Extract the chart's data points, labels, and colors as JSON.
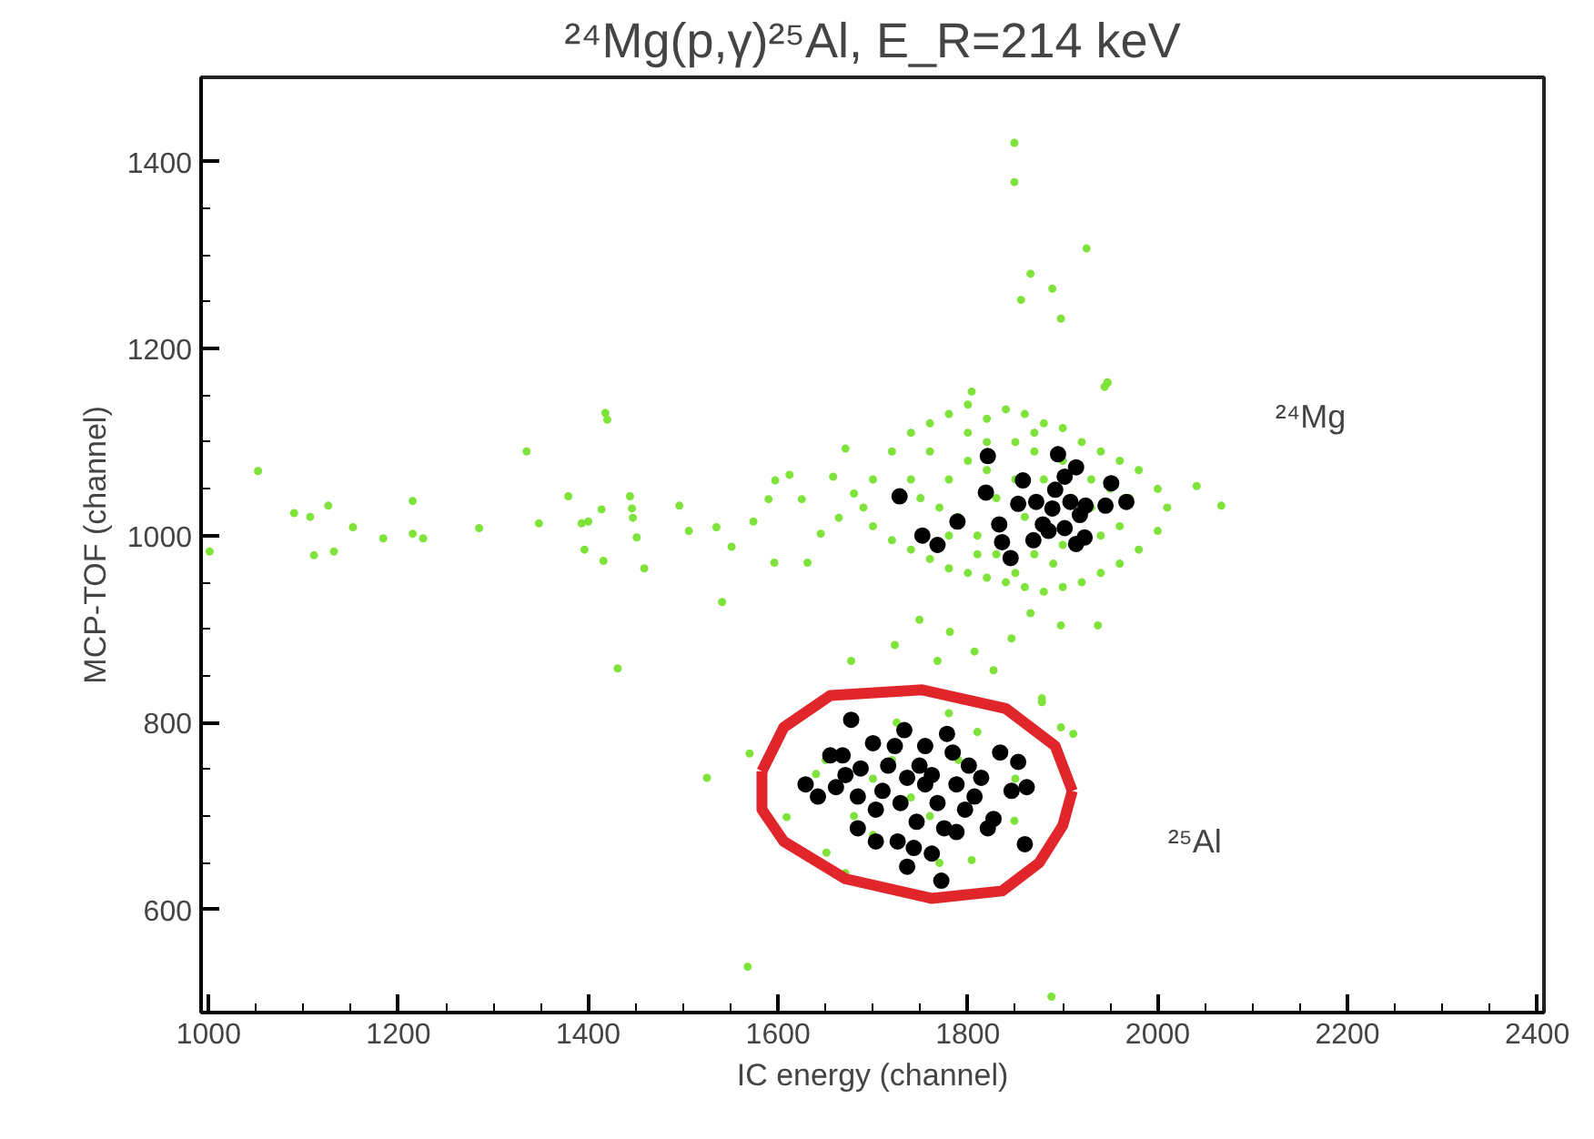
{
  "chart_data": {
    "type": "scatter",
    "title": "²⁴Mg(p,γ)²⁵Al, E_R=214 keV",
    "xlabel": "IC energy (channel)",
    "ylabel": "MCP-TOF (channel)",
    "xlim": [
      992,
      2407
    ],
    "ylim": [
      490,
      1490
    ],
    "xticks": [
      1000,
      1200,
      1400,
      1600,
      1800,
      2000,
      2200,
      2400
    ],
    "yticks": [
      600,
      800,
      1000,
      1200,
      1400
    ],
    "grid": false,
    "marker": "circle",
    "annotations": [
      "²⁴Mg",
      "²⁵Al"
    ],
    "series": [
      {
        "color": "#7ee33a",
        "x": [
          1052,
          1001,
          1090,
          1107,
          1126,
          1111,
          1132,
          1152,
          1184,
          1215,
          1215,
          1226,
          1285,
          1335,
          1348,
          1379,
          1393,
          1400,
          1396,
          1414,
          1418,
          1420,
          1416,
          1444,
          1446,
          1447,
          1451,
          1459,
          1496,
          1506,
          1535,
          1541,
          1551,
          1574,
          1590,
          1597,
          1612,
          1596,
          1625,
          1631,
          1645,
          1671,
          1658,
          1849,
          1849,
          1925,
          1866,
          1889,
          1856,
          1898,
          1947,
          1944,
          1431,
          1570,
          1525,
          1568,
          1888,
          1609,
          1651,
          1671,
          1804,
          1849,
          1878,
          1898,
          1677,
          1723,
          1749,
          1781,
          1807,
          1846,
          1866,
          1898,
          1878,
          1827,
          1768,
          1937,
          1911,
          1664,
          2067,
          2041,
          1947,
          1804,
          1700,
          1720,
          1740,
          1760,
          1780,
          1800,
          1820,
          1840,
          1860,
          1880,
          1900,
          1920,
          1940,
          1960,
          1980,
          2000,
          2010,
          2000,
          1980,
          1960,
          1940,
          1920,
          1900,
          1880,
          1860,
          1840,
          1820,
          1800,
          1780,
          1760,
          1740,
          1720,
          1700,
          1690,
          1680,
          1750,
          1780,
          1800,
          1820,
          1850,
          1870,
          1900,
          1930,
          1950,
          1970,
          1960,
          1940,
          1900,
          1870,
          1850,
          1830,
          1810,
          1790,
          1770,
          1740,
          1760,
          1800,
          1880,
          1860,
          1830,
          1850,
          1910,
          1930,
          1780,
          1820,
          1870,
          1890,
          1810,
          1650,
          1680,
          1700,
          1720,
          1740,
          1760,
          1790,
          1810,
          1830,
          1850,
          1700,
          1770,
          1640,
          1725,
          1780
        ],
        "values": [
          1069,
          983,
          1024,
          1020,
          1032,
          979,
          983,
          1009,
          997,
          1037,
          1002,
          997,
          1008,
          1090,
          1013,
          1042,
          1013,
          1015,
          985,
          1028,
          1131,
          1124,
          973,
          1042,
          1029,
          1019,
          998,
          965,
          1032,
          1005,
          1009,
          929,
          988,
          1015,
          1039,
          1059,
          1065,
          971,
          1039,
          971,
          1002,
          1093,
          1063,
          1420,
          1378,
          1307,
          1280,
          1264,
          1252,
          1232,
          1163,
          1159,
          858,
          767,
          741,
          539,
          507,
          699,
          661,
          639,
          653,
          695,
          822,
          795,
          866,
          883,
          910,
          897,
          876,
          890,
          917,
          904,
          826,
          856,
          866,
          904,
          788,
          1019,
          1032,
          1053,
          1164,
          1154,
          1060,
          1090,
          1110,
          1120,
          1130,
          1140,
          1125,
          1135,
          1130,
          1120,
          1115,
          1100,
          1090,
          1080,
          1070,
          1050,
          1030,
          1005,
          985,
          970,
          960,
          950,
          945,
          940,
          945,
          950,
          955,
          960,
          965,
          975,
          985,
          995,
          1010,
          1030,
          1045,
          1040,
          1060,
          1080,
          1100,
          1100,
          1090,
          1080,
          1060,
          1050,
          1040,
          1010,
          1000,
          990,
          980,
          960,
          980,
          1000,
          1020,
          1030,
          1060,
          1090,
          1110,
          1060,
          1020,
          1040,
          1060,
          1040,
          1030,
          1000,
          1070,
          1110,
          970,
          980,
          760,
          700,
          740,
          760,
          720,
          700,
          760,
          790,
          700,
          740,
          680,
          650,
          745,
          800,
          810
        ]
      },
      {
        "color": "#000000",
        "x": [
          1728,
          1821,
          1819,
          1895,
          1914,
          1858,
          1853,
          1789,
          1752,
          1768,
          1833,
          1836,
          1845,
          1869,
          1879,
          1889,
          1892,
          1902,
          1908,
          1918,
          1924,
          1914,
          1923,
          1902,
          1951,
          1945,
          1967,
          1885,
          1872,
          1677,
          1629,
          1642,
          1655,
          1668,
          1671,
          1684,
          1684,
          1703,
          1700,
          1716,
          1726,
          1733,
          1736,
          1743,
          1749,
          1755,
          1762,
          1772,
          1778,
          1784,
          1788,
          1797,
          1814,
          1821,
          1827,
          1834,
          1846,
          1853,
          1862,
          1860,
          1710,
          1729,
          1768,
          1788,
          1687,
          1723,
          1755,
          1801,
          1746,
          1775,
          1703,
          1661,
          1807,
          1762,
          1736
        ],
        "values": [
          1042,
          1085,
          1046,
          1087,
          1073,
          1059,
          1034,
          1015,
          1000,
          990,
          1012,
          993,
          976,
          995,
          1012,
          1029,
          1049,
          1063,
          1036,
          1022,
          1032,
          991,
          998,
          1008,
          1056,
          1032,
          1036,
          1005,
          1036,
          803,
          734,
          721,
          765,
          765,
          744,
          721,
          687,
          673,
          778,
          754,
          673,
          792,
          646,
          666,
          754,
          734,
          660,
          631,
          788,
          768,
          683,
          707,
          741,
          687,
          697,
          768,
          727,
          758,
          731,
          670,
          727,
          714,
          714,
          734,
          751,
          775,
          775,
          754,
          694,
          687,
          707,
          731,
          721,
          744,
          741
        ]
      },
      {
        "type": "line",
        "marker": "none",
        "color": "#e0262a",
        "x": [
          1583,
          1606,
          1655,
          1752,
          1840,
          1892,
          1910
        ],
        "values": [
          748,
          795,
          829,
          835,
          815,
          775,
          727
        ]
      },
      {
        "type": "line",
        "marker": "none",
        "color": "#e0262a",
        "x": [
          1583,
          1583,
          1606,
          1671,
          1762,
          1836,
          1875,
          1900,
          1910
        ],
        "values": [
          748,
          707,
          673,
          633,
          612,
          620,
          650,
          690,
          727
        ]
      }
    ]
  }
}
